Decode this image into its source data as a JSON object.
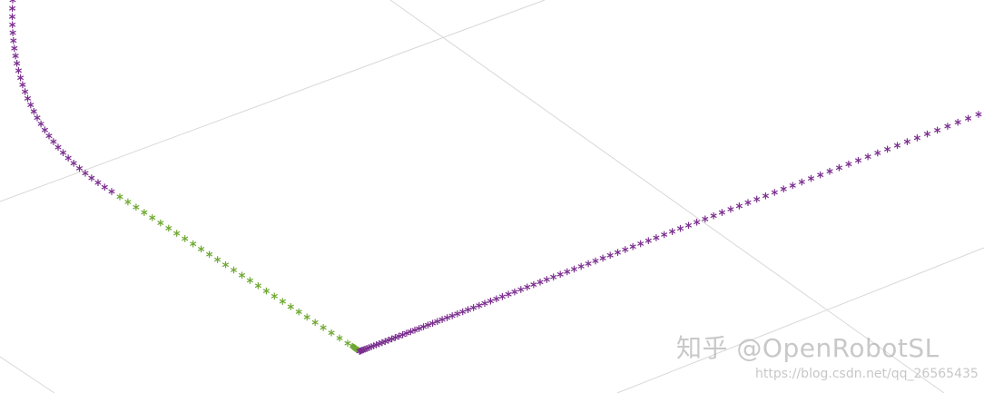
{
  "scene": {
    "background": "#ffffff",
    "grid_color": "#d8d8d8",
    "path_colors": {
      "purple": "#7b2f8f",
      "green": "#6fa832"
    },
    "marker_icon": "asterisk-marker-icon"
  },
  "watermark": {
    "text": "知乎 @OpenRobotSL",
    "url": "https://blog.csdn.net/qq_26565435"
  }
}
